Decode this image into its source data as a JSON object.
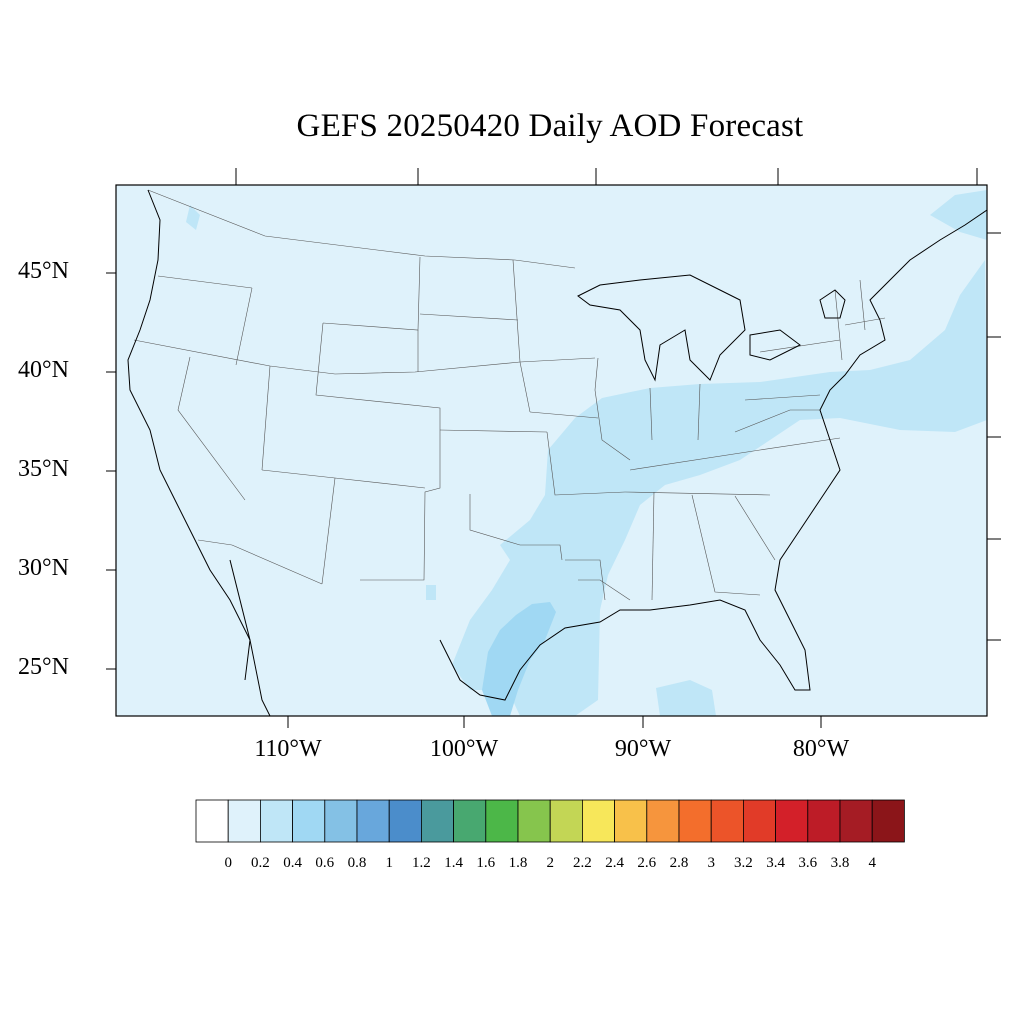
{
  "title": "GEFS 20250420 Daily AOD Forecast",
  "latitude_labels": [
    "45°N",
    "40°N",
    "35°N",
    "30°N",
    "25°N"
  ],
  "longitude_labels": [
    "110°W",
    "100°W",
    "90°W",
    "80°W"
  ],
  "colorbar": {
    "labels": [
      "0",
      "0.2",
      "0.4",
      "0.6",
      "0.8",
      "1",
      "1.2",
      "1.4",
      "1.6",
      "1.8",
      "2",
      "2.2",
      "2.4",
      "2.6",
      "2.8",
      "3",
      "3.2",
      "3.4",
      "3.6",
      "3.8",
      "4"
    ],
    "colors": [
      "#ffffff",
      "#dff2fb",
      "#bfe6f7",
      "#a0d8f3",
      "#84c1e5",
      "#68a7dc",
      "#4b8dcb",
      "#4a9a9d",
      "#48a870",
      "#4cb748",
      "#86c54d",
      "#c3d655",
      "#f7e75a",
      "#f8c14a",
      "#f6953d",
      "#f36e2c",
      "#ec5429",
      "#e13b28",
      "#d32029",
      "#bd1c27",
      "#a51c24",
      "#8b1519"
    ]
  },
  "layers": {
    "background_aod": "0-0.2",
    "plume_aod": "0.2-0.4",
    "core_aod": "0.4-0.6"
  }
}
